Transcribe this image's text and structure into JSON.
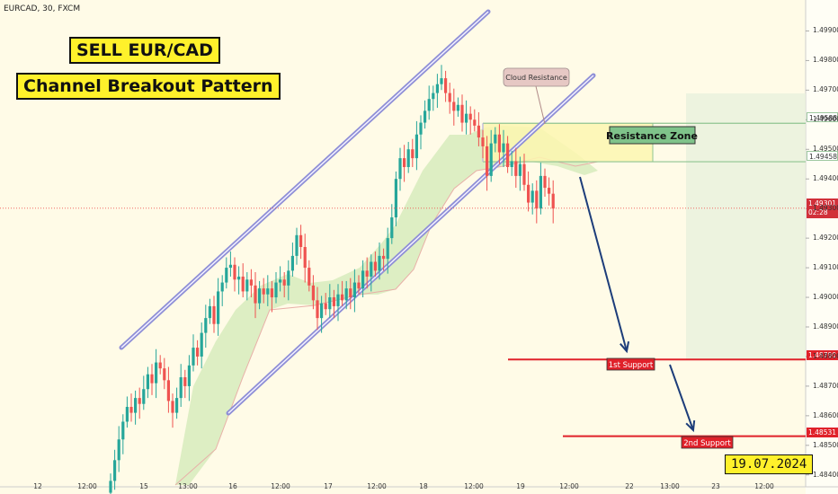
{
  "ticker": "EURCAD, 30, FXCM",
  "title_line1": "SELL EUR/CAD",
  "title_line2": "Channel Breakout Pattern",
  "date_label": "19.07.2024",
  "annotations": {
    "cloud_resistance": "Cloud Resistance",
    "resistance_zone": "Resistance Zone",
    "support1": "1st Support",
    "support2": "2nd Support"
  },
  "price_tags": {
    "r_top": "1.49588",
    "r_bottom": "1.49458",
    "current_price": "1.49301",
    "current_time": "02:28",
    "s1": "1.48790",
    "s2": "1.48531"
  },
  "colors": {
    "background": "#fffbe7",
    "bull": "#26a69a",
    "bear": "#ef5350",
    "channel": "#8e8ed6",
    "cloud": "#cfe8b4",
    "support_line": "#e0212a",
    "arrow": "#1d3d7a"
  },
  "chart_data": {
    "type": "candlestick",
    "symbol": "EURCAD",
    "timeframe": "30",
    "ylim": [
      1.4836,
      1.4998
    ],
    "y_ticks": [
      "1.49900",
      "1.49800",
      "1.49700",
      "1.49600",
      "1.49500",
      "1.49400",
      "1.49300",
      "1.49200",
      "1.49100",
      "1.49000",
      "1.48900",
      "1.48800",
      "1.48700",
      "1.48600",
      "1.48500",
      "1.48400"
    ],
    "x_ticks": [
      "12",
      "12:00",
      "15",
      "13:00",
      "16",
      "12:00",
      "17",
      "12:00",
      "18",
      "12:00",
      "19",
      "12:00",
      "22",
      "13:00",
      "23",
      "12:00"
    ],
    "levels": {
      "resistance_top": 1.49588,
      "resistance_bottom": 1.49458,
      "current": 1.49301,
      "support_1": 1.4879,
      "support_2": 1.48531
    },
    "candles_close": [
      1.4838,
      1.4845,
      1.4852,
      1.4858,
      1.4863,
      1.4861,
      1.4866,
      1.4864,
      1.4869,
      1.4874,
      1.4871,
      1.4878,
      1.4876,
      1.4872,
      1.4865,
      1.4861,
      1.4866,
      1.4873,
      1.487,
      1.4877,
      1.4883,
      1.488,
      1.4888,
      1.4893,
      1.4897,
      1.4891,
      1.4902,
      1.4905,
      1.491,
      1.4911,
      1.4906,
      1.4907,
      1.4902,
      1.4906,
      1.4904,
      1.4898,
      1.4903,
      1.4901,
      1.4903,
      1.49,
      1.4905,
      1.4906,
      1.4904,
      1.4909,
      1.4914,
      1.4921,
      1.4917,
      1.491,
      1.4904,
      1.4899,
      1.4893,
      1.4898,
      1.4896,
      1.49,
      1.4897,
      1.4901,
      1.4899,
      1.4903,
      1.49,
      1.4905,
      1.4903,
      1.4909,
      1.4907,
      1.4912,
      1.4909,
      1.4914,
      1.4913,
      1.492,
      1.4927,
      1.494,
      1.4947,
      1.4944,
      1.495,
      1.4947,
      1.4955,
      1.4959,
      1.4963,
      1.4967,
      1.4969,
      1.4972,
      1.4974,
      1.4969,
      1.4966,
      1.4963,
      1.4965,
      1.4959,
      1.4962,
      1.496,
      1.4958,
      1.4954,
      1.4951,
      1.4941,
      1.4952,
      1.4955,
      1.4949,
      1.4952,
      1.4944,
      1.4946,
      1.4941,
      1.4945,
      1.4938,
      1.4932,
      1.4936,
      1.493,
      1.4941,
      1.4937,
      1.4935,
      1.493
    ]
  }
}
